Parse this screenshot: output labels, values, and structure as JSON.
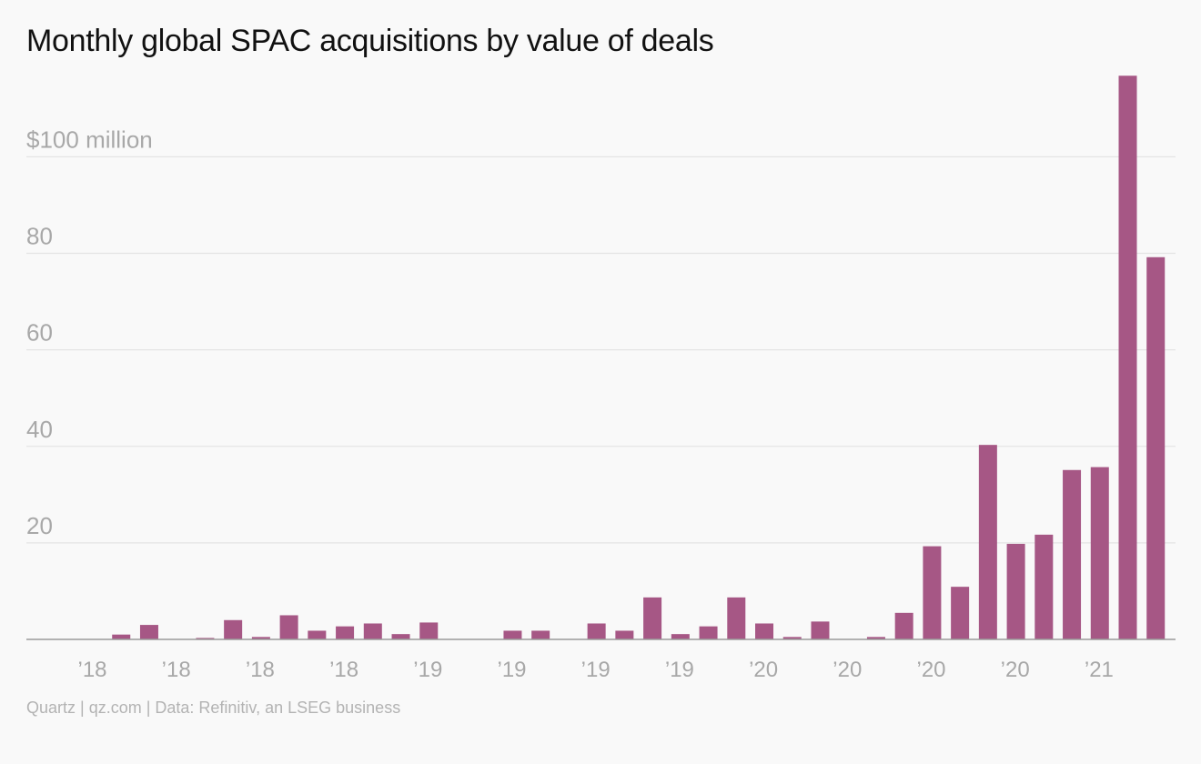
{
  "title": "Monthly global SPAC acquisitions by value of deals",
  "source": "Quartz | qz.com | Data: Refinitiv, an LSEG business",
  "colors": {
    "bar": "#a65785",
    "grid": "#e4e4e4",
    "axis": "#9a9a9a",
    "tick_text": "#a8a8a8",
    "background": "#f9f9f9"
  },
  "chart_data": {
    "type": "bar",
    "title": "Monthly global SPAC acquisitions by value of deals",
    "ylabel": "$100 million",
    "ylim": [
      0,
      117
    ],
    "yticks": [
      {
        "value": 20,
        "label": "20"
      },
      {
        "value": 40,
        "label": "40"
      },
      {
        "value": 60,
        "label": "60"
      },
      {
        "value": 80,
        "label": "80"
      },
      {
        "value": 100,
        "label": "$100 million"
      }
    ],
    "x_tick_labels": [
      "’18",
      "’18",
      "’18",
      "’18",
      "’19",
      "’19",
      "’19",
      "’19",
      "’20",
      "’20",
      "’20",
      "’20",
      "’21"
    ],
    "grid": true,
    "values": [
      0,
      1,
      3,
      0,
      0.3,
      4,
      0.5,
      5,
      1.8,
      2.7,
      3.3,
      1.1,
      3.5,
      0,
      0,
      1.8,
      1.8,
      0,
      3.3,
      1.8,
      8.7,
      1.1,
      2.7,
      8.7,
      3.3,
      0.5,
      3.7,
      0,
      0.5,
      5.5,
      19.3,
      10.9,
      40.3,
      19.8,
      21.7,
      35.1,
      35.7,
      116.8,
      79.2
    ]
  }
}
